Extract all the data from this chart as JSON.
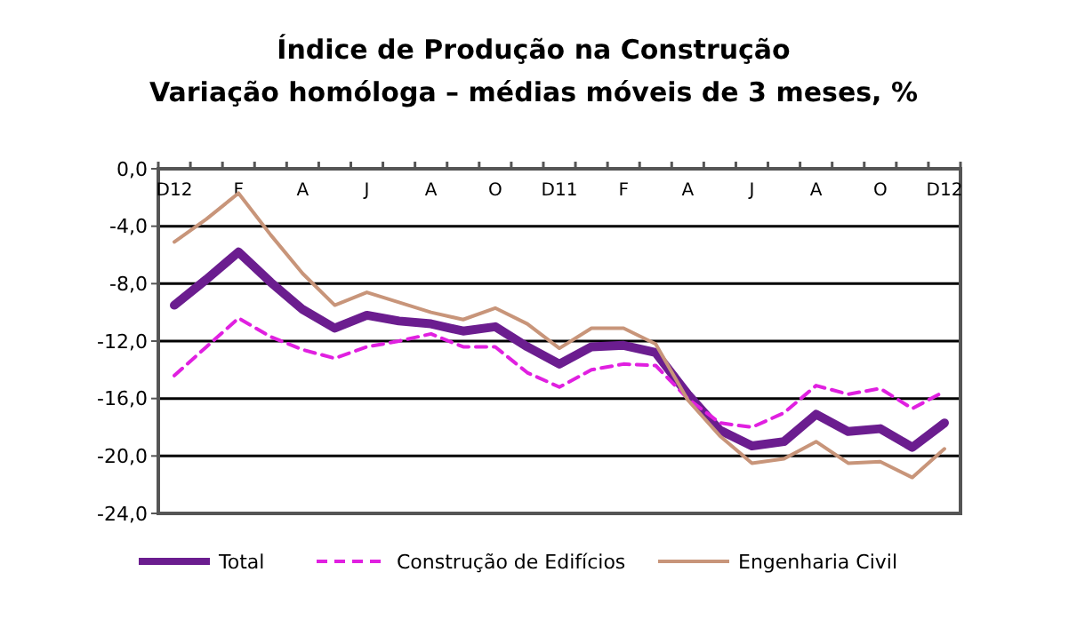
{
  "chart_data": {
    "type": "line",
    "title": "Índice de Produção na Construção",
    "subtitle": "Variação homóloga – médias móveis de 3 meses, %",
    "categories": [
      "D12",
      null,
      "F",
      null,
      "A",
      null,
      "J",
      null,
      "A",
      null,
      "O",
      null,
      "D11",
      null,
      "F",
      null,
      "A",
      null,
      "J",
      null,
      "A",
      null,
      "O",
      null,
      "D12"
    ],
    "ylim": [
      -24,
      0
    ],
    "yticks": [
      {
        "value": 0,
        "label": "0,0"
      },
      {
        "value": -4,
        "label": "-4,0"
      },
      {
        "value": -8,
        "label": "-8,0"
      },
      {
        "value": -12,
        "label": "-12,0"
      },
      {
        "value": -16,
        "label": "-16,0"
      },
      {
        "value": -20,
        "label": "-20,0"
      },
      {
        "value": -24,
        "label": "-24,0"
      }
    ],
    "grid": "y",
    "legend": "bottom",
    "marker": "none",
    "series": [
      {
        "name": "Total",
        "color": "#6b1d8f",
        "line_style": "solid",
        "values": [
          -9.5,
          -7.7,
          -5.8,
          -7.9,
          -9.8,
          -11.1,
          -10.2,
          -10.6,
          -10.8,
          -11.3,
          -11.0,
          -12.4,
          -13.6,
          -12.4,
          -12.3,
          -12.8,
          -15.7,
          -18.2,
          -19.3,
          -19.0,
          -17.1,
          -18.3,
          -18.1,
          -19.4,
          -17.7
        ]
      },
      {
        "name": "Construção de Edifícios",
        "color": "#e020e0",
        "line_style": "dashed",
        "values": [
          -14.4,
          -12.4,
          -10.4,
          -11.7,
          -12.6,
          -13.2,
          -12.4,
          -12.0,
          -11.5,
          -12.4,
          -12.4,
          -14.2,
          -15.2,
          -14.0,
          -13.6,
          -13.7,
          -16.0,
          -17.7,
          -18.0,
          -17.0,
          -15.1,
          -15.7,
          -15.3,
          -16.7,
          -15.5
        ]
      },
      {
        "name": "Engenharia Civil",
        "color": "#c8957a",
        "line_style": "solid",
        "values": [
          -5.1,
          -3.5,
          -1.7,
          -4.6,
          -7.3,
          -9.5,
          -8.6,
          -9.3,
          -10.0,
          -10.5,
          -9.7,
          -10.8,
          -12.5,
          -11.1,
          -11.1,
          -12.2,
          -16.1,
          -18.6,
          -20.5,
          -20.2,
          -19.0,
          -20.5,
          -20.4,
          -21.5,
          -19.5
        ]
      }
    ]
  }
}
